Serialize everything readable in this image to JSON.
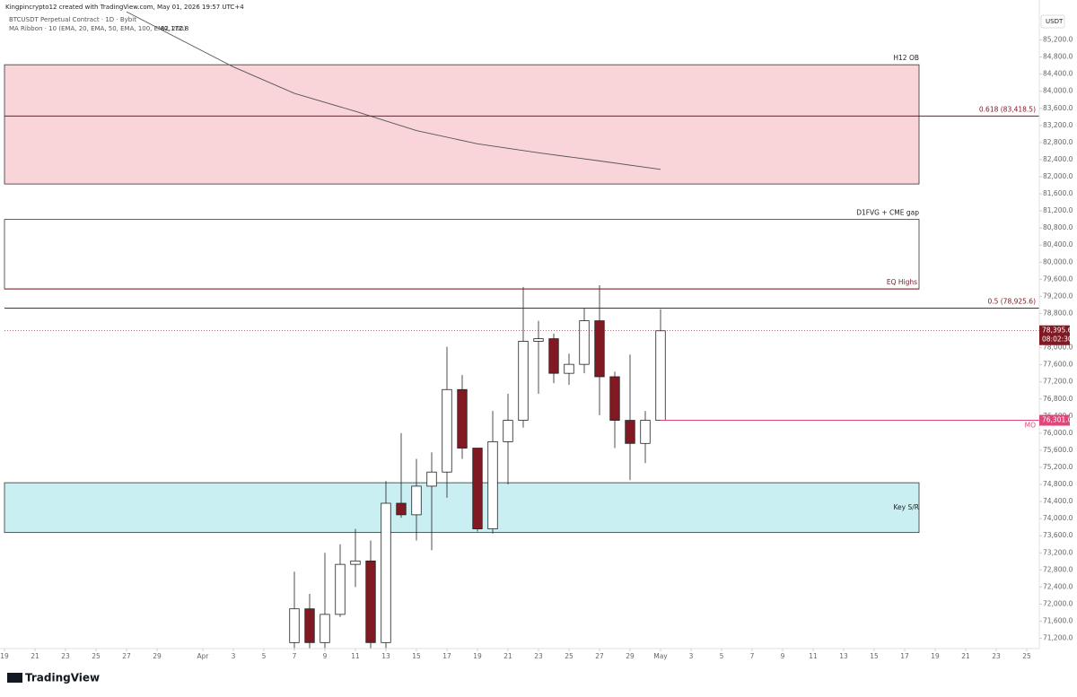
{
  "header": {
    "credit": "Kingpincrypto12 created with TradingView.com, May 01, 2026 19:57 UTC+4",
    "symbol": "BTCUSDT Perpetual Contract · 1D · Bybit",
    "indicator": "MA Ribbon · 10 (EMA, 20, EMA, 50, EMA, 100, EMA, 200)",
    "indicator_value": "82,172.8",
    "currency": "USDT",
    "logo": "TradingView"
  },
  "chart_data": {
    "type": "candlestick",
    "xlim": [
      "2026-03-19",
      "2026-05-26"
    ],
    "ylim": [
      70960,
      85820
    ],
    "yticks": [
      {
        "value": 71200,
        "label": "71,200.0"
      },
      {
        "value": 71600,
        "label": "71,600.0"
      },
      {
        "value": 72000,
        "label": "72,000.0"
      },
      {
        "value": 72400,
        "label": "72,400.0"
      },
      {
        "value": 72800,
        "label": "72,800.0"
      },
      {
        "value": 73200,
        "label": "73,200.0"
      },
      {
        "value": 73600,
        "label": "73,600.0"
      },
      {
        "value": 74000,
        "label": "74,000.0"
      },
      {
        "value": 74400,
        "label": "74,400.0"
      },
      {
        "value": 74800,
        "label": "74,800.0"
      },
      {
        "value": 75200,
        "label": "75,200.0"
      },
      {
        "value": 75600,
        "label": "75,600.0"
      },
      {
        "value": 76000,
        "label": "76,000.0"
      },
      {
        "value": 76400,
        "label": "76,400.0"
      },
      {
        "value": 76800,
        "label": "76,800.0"
      },
      {
        "value": 77200,
        "label": "77,200.0"
      },
      {
        "value": 77600,
        "label": "77,600.0"
      },
      {
        "value": 78000,
        "label": "78,000.0"
      },
      {
        "value": 78800,
        "label": "78,800.0"
      },
      {
        "value": 79200,
        "label": "79,200.0"
      },
      {
        "value": 79600,
        "label": "79,600.0"
      },
      {
        "value": 80000,
        "label": "80,000.0"
      },
      {
        "value": 80400,
        "label": "80,400.0"
      },
      {
        "value": 80800,
        "label": "80,800.0"
      },
      {
        "value": 81200,
        "label": "81,200.0"
      },
      {
        "value": 81600,
        "label": "81,600.0"
      },
      {
        "value": 82000,
        "label": "82,000.0"
      },
      {
        "value": 82400,
        "label": "82,400.0"
      },
      {
        "value": 82800,
        "label": "82,800.0"
      },
      {
        "value": 83200,
        "label": "83,200.0"
      },
      {
        "value": 83600,
        "label": "83,600.0"
      },
      {
        "value": 84000,
        "label": "84,000.0"
      },
      {
        "value": 84400,
        "label": "84,400.0"
      },
      {
        "value": 84800,
        "label": "84,800.0"
      },
      {
        "value": 85200,
        "label": "85,200.0"
      }
    ],
    "xticks": [
      {
        "value": "2026-03-19",
        "label": "19"
      },
      {
        "value": "2026-03-21",
        "label": "21"
      },
      {
        "value": "2026-03-23",
        "label": "23"
      },
      {
        "value": "2026-03-25",
        "label": "25"
      },
      {
        "value": "2026-03-27",
        "label": "27"
      },
      {
        "value": "2026-03-29",
        "label": "29"
      },
      {
        "value": "2026-04-01",
        "label": "Apr"
      },
      {
        "value": "2026-04-03",
        "label": "3"
      },
      {
        "value": "2026-04-05",
        "label": "5"
      },
      {
        "value": "2026-04-07",
        "label": "7"
      },
      {
        "value": "2026-04-09",
        "label": "9"
      },
      {
        "value": "2026-04-11",
        "label": "11"
      },
      {
        "value": "2026-04-13",
        "label": "13"
      },
      {
        "value": "2026-04-15",
        "label": "15"
      },
      {
        "value": "2026-04-17",
        "label": "17"
      },
      {
        "value": "2026-04-19",
        "label": "19"
      },
      {
        "value": "2026-04-21",
        "label": "21"
      },
      {
        "value": "2026-04-23",
        "label": "23"
      },
      {
        "value": "2026-04-25",
        "label": "25"
      },
      {
        "value": "2026-04-27",
        "label": "27"
      },
      {
        "value": "2026-04-29",
        "label": "29"
      },
      {
        "value": "2026-05-01",
        "label": "May"
      },
      {
        "value": "2026-05-03",
        "label": "3"
      },
      {
        "value": "2026-05-05",
        "label": "5"
      },
      {
        "value": "2026-05-07",
        "label": "7"
      },
      {
        "value": "2026-05-09",
        "label": "9"
      },
      {
        "value": "2026-05-11",
        "label": "11"
      },
      {
        "value": "2026-05-13",
        "label": "13"
      },
      {
        "value": "2026-05-15",
        "label": "15"
      },
      {
        "value": "2026-05-17",
        "label": "17"
      },
      {
        "value": "2026-05-19",
        "label": "19"
      },
      {
        "value": "2026-05-21",
        "label": "21"
      },
      {
        "value": "2026-05-23",
        "label": "23"
      },
      {
        "value": "2026-05-25",
        "label": "25"
      }
    ],
    "up_color": "#ffffff",
    "down_color": "#801922",
    "candles": [
      {
        "date": "2026-04-07",
        "open": 71100,
        "high": 72760,
        "low": 70900,
        "close": 71890
      },
      {
        "date": "2026-04-08",
        "open": 71890,
        "high": 72240,
        "low": 70900,
        "close": 71100
      },
      {
        "date": "2026-04-09",
        "open": 71100,
        "high": 73200,
        "low": 70900,
        "close": 71760
      },
      {
        "date": "2026-04-10",
        "open": 71760,
        "high": 73400,
        "low": 71700,
        "close": 72930
      },
      {
        "date": "2026-04-11",
        "open": 72930,
        "high": 73760,
        "low": 72400,
        "close": 73010
      },
      {
        "date": "2026-04-12",
        "open": 73010,
        "high": 73490,
        "low": 70900,
        "close": 71100
      },
      {
        "date": "2026-04-13",
        "open": 71100,
        "high": 74880,
        "low": 70900,
        "close": 74360
      },
      {
        "date": "2026-04-14",
        "open": 74360,
        "high": 76000,
        "low": 74020,
        "close": 74090
      },
      {
        "date": "2026-04-15",
        "open": 74090,
        "high": 75400,
        "low": 73490,
        "close": 74760
      },
      {
        "date": "2026-04-16",
        "open": 74760,
        "high": 75550,
        "low": 73260,
        "close": 75090
      },
      {
        "date": "2026-04-17",
        "open": 75090,
        "high": 78020,
        "low": 74490,
        "close": 77020
      },
      {
        "date": "2026-04-18",
        "open": 77020,
        "high": 77360,
        "low": 75400,
        "close": 75650
      },
      {
        "date": "2026-04-19",
        "open": 75650,
        "high": 75650,
        "low": 73700,
        "close": 73760
      },
      {
        "date": "2026-04-20",
        "open": 73760,
        "high": 76520,
        "low": 73650,
        "close": 75800
      },
      {
        "date": "2026-04-21",
        "open": 75800,
        "high": 76920,
        "low": 74800,
        "close": 76300
      },
      {
        "date": "2026-04-22",
        "open": 76300,
        "high": 79420,
        "low": 76130,
        "close": 78150
      },
      {
        "date": "2026-04-23",
        "open": 78150,
        "high": 78630,
        "low": 76920,
        "close": 78210
      },
      {
        "date": "2026-04-24",
        "open": 78210,
        "high": 78330,
        "low": 77170,
        "close": 77400
      },
      {
        "date": "2026-04-25",
        "open": 77400,
        "high": 77860,
        "low": 77130,
        "close": 77610
      },
      {
        "date": "2026-04-26",
        "open": 77610,
        "high": 78920,
        "low": 77400,
        "close": 78630
      },
      {
        "date": "2026-04-27",
        "open": 78630,
        "high": 79460,
        "low": 76420,
        "close": 77320
      },
      {
        "date": "2026-04-28",
        "open": 77320,
        "high": 77440,
        "low": 75650,
        "close": 76300
      },
      {
        "date": "2026-04-29",
        "open": 76300,
        "high": 77840,
        "low": 74900,
        "close": 75760
      },
      {
        "date": "2026-04-30",
        "open": 75760,
        "high": 76520,
        "low": 75300,
        "close": 76300
      },
      {
        "date": "2026-05-01",
        "open": 76300,
        "high": 78900,
        "low": 76300,
        "close": 78395.6
      }
    ],
    "ma": {
      "color": "#555555",
      "x": [
        "2026-03-27",
        "2026-04-03",
        "2026-04-07",
        "2026-04-11",
        "2026-04-15",
        "2026-04-19",
        "2026-04-23",
        "2026-04-27",
        "2026-05-01"
      ],
      "values": [
        85860,
        84570,
        83950,
        83530,
        83080,
        82770,
        82560,
        82370,
        82172.8
      ]
    },
    "zones": [
      {
        "name": "H12 OB",
        "top": 84620,
        "bottom": 81830,
        "fill": "#f9d4d9",
        "stroke": "#333333"
      },
      {
        "name": "D1FVG + CME gap",
        "top": 81000,
        "bottom": 79374,
        "fill": "#ffffff",
        "stroke": "#333333"
      },
      {
        "name": "Key S/R",
        "top": 74840,
        "bottom": 73675,
        "fill": "#c9eff3",
        "stroke": "#333333"
      }
    ],
    "levels": [
      {
        "name": "EQ Highs",
        "value": 79374,
        "color": "#801922"
      },
      {
        "name": "0.618 (83,418.5)",
        "value": 83418.5,
        "color": "#801922"
      },
      {
        "name": "0.5 (78,925.6)",
        "value": 78925.6,
        "color": "#801922"
      },
      {
        "name": "MO",
        "value": 76301,
        "label": "76,301.0",
        "color": "#e0457b"
      }
    ],
    "last_price": {
      "value": 78395.6,
      "label": "78,395.6",
      "countdown": "08:02:30",
      "color": "#801922"
    }
  }
}
